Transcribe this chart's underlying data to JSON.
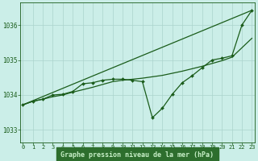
{
  "title": "Graphe pression niveau de la mer (hPa)",
  "background_color": "#cbeee8",
  "plot_bg_color": "#cbeee8",
  "grid_color": "#aad4cc",
  "line_color": "#1a5c1a",
  "marker_color": "#1a5c1a",
  "label_bg_color": "#2d6e2d",
  "label_text_color": "#c8f0c8",
  "yticks": [
    1033,
    1034,
    1035,
    1036
  ],
  "xticks": [
    0,
    1,
    2,
    3,
    4,
    5,
    6,
    7,
    8,
    9,
    10,
    11,
    12,
    13,
    14,
    15,
    16,
    17,
    18,
    19,
    20,
    21,
    22,
    23
  ],
  "ylim": [
    1032.65,
    1036.65
  ],
  "xlim": [
    -0.3,
    23.3
  ],
  "series1_x": [
    0,
    1,
    2,
    3,
    4,
    5,
    6,
    7,
    8,
    9,
    10,
    11,
    12,
    13,
    14,
    15,
    16,
    17,
    18,
    19,
    20,
    21,
    22,
    23
  ],
  "series1_y": [
    1033.72,
    1033.82,
    1033.88,
    1034.0,
    1034.02,
    1034.1,
    1034.32,
    1034.35,
    1034.42,
    1034.45,
    1034.45,
    1034.42,
    1034.38,
    1033.35,
    1033.62,
    1034.02,
    1034.35,
    1034.55,
    1034.78,
    1035.0,
    1035.05,
    1035.12,
    1036.0,
    1036.42
  ],
  "series2_x": [
    0,
    1,
    2,
    3,
    4,
    5,
    6,
    7,
    8,
    9,
    10,
    11,
    12,
    13,
    14,
    15,
    16,
    17,
    18,
    19,
    20,
    21,
    22,
    23
  ],
  "series2_y": [
    1033.72,
    1033.82,
    1033.88,
    1033.95,
    1034.0,
    1034.08,
    1034.15,
    1034.22,
    1034.3,
    1034.38,
    1034.42,
    1034.45,
    1034.48,
    1034.52,
    1034.56,
    1034.62,
    1034.68,
    1034.75,
    1034.82,
    1034.9,
    1034.98,
    1035.08,
    1035.35,
    1035.62
  ],
  "series3_x": [
    0,
    23
  ],
  "series3_y": [
    1033.72,
    1036.42
  ]
}
